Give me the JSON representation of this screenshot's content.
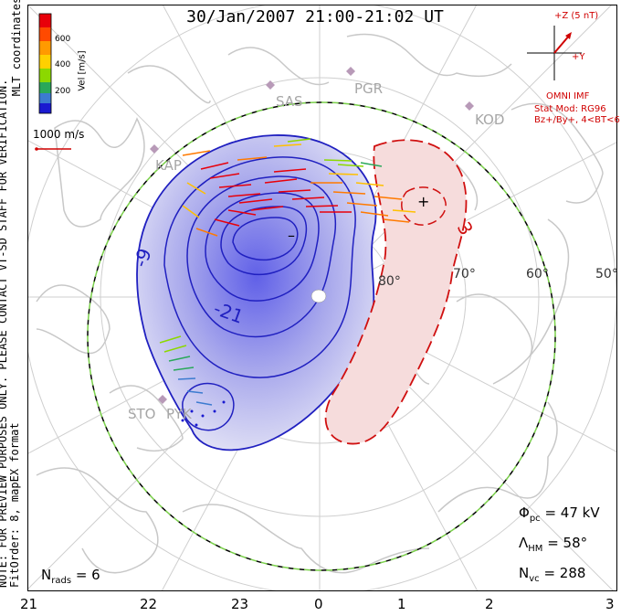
{
  "title": "30/Jan/2007 21:00-21:02 UT",
  "side_note_line1": "NOTE: FOR PREVIEW PURPOSES ONLY. PLEASE CONTACT VT-SD STAFF FOR VERIFICATION.",
  "side_note_line2": "FitOrder: 8, mapEX format",
  "coord_label": "MLT coordinates",
  "colorbar": {
    "label": "Vel [m/s]",
    "ticks": [
      "600",
      "400",
      "200"
    ],
    "colors": [
      "#e8000a",
      "#ff7a00",
      "#ffc000",
      "#8cd800",
      "#2aa85a",
      "#3c7bd0",
      "#1a1ad0"
    ]
  },
  "ref_vector": "1000 m/s",
  "imf": {
    "axis_z": "+Z (5 nT)",
    "axis_y": "+Y",
    "source": "OMNI IMF",
    "model_line1": "Stat Mod: RG96",
    "model_line2": "Bz+/By+, 4<BT<6"
  },
  "stations": [
    "SAS",
    "PGR",
    "KOD",
    "KAP",
    "STO",
    "PYK"
  ],
  "lat_labels": [
    "80°",
    "70°",
    "60°",
    "50°"
  ],
  "contour_labels": [
    "-9",
    "-21",
    "3",
    "+",
    "–"
  ],
  "mlt_labels": [
    "21",
    "22",
    "23",
    "0",
    "1",
    "2",
    "3"
  ],
  "stats": {
    "phi_pc_sym": "Φ",
    "phi_pc_sub": "pc",
    "phi_pc_val": "= 47 kV",
    "lambda_sym": "Λ",
    "lambda_sub": "HM",
    "lambda_val": "= 58°",
    "nvc_sym": "N",
    "nvc_sub": "vc",
    "nvc_val": "= 288",
    "nrads_sym": "N",
    "nrads_sub": "rads",
    "nrads_val": "= 6"
  },
  "colors": {
    "negative_cell": "#2020c0",
    "positive_cell": "#d01010",
    "boundary_green": "#7ad04a",
    "coastline": "#c8c8c8"
  }
}
